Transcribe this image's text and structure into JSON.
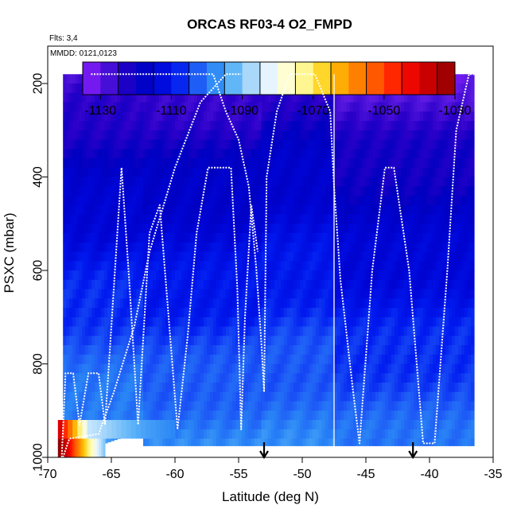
{
  "chart_data": {
    "type": "heatmap",
    "title": "ORCAS RF03-4 O2_FMPD",
    "subtitle_flights": "Flts: 3,4",
    "subtitle_dates": "MMDD: 0121,0123",
    "xlabel": "Latitude (deg N)",
    "ylabel": "PSXC (mbar)",
    "xlim": [
      -70,
      -35
    ],
    "ylim": [
      1000,
      120
    ],
    "x_ticks": [
      -70,
      -65,
      -60,
      -55,
      -50,
      -45,
      -40,
      -35
    ],
    "x_tick_labels": [
      "-70",
      "-65",
      "-60",
      "-55",
      "-50",
      "-45",
      "-40",
      "-35"
    ],
    "y_ticks": [
      200,
      400,
      600,
      800,
      1000
    ],
    "y_tick_labels": [
      "200",
      "400",
      "600",
      "800",
      "1000"
    ],
    "colorbar": {
      "range": [
        -1135,
        -1030
      ],
      "step": 5,
      "ticks": [
        -1130,
        -1110,
        -1090,
        -1070,
        -1050,
        -1030
      ],
      "tick_labels": [
        "-1130",
        "-1110",
        "-1090",
        "-1070",
        "-1050",
        "-1030"
      ],
      "colors": [
        "#8c1aff",
        "#5a19e0",
        "#2b00c9",
        "#0000c0",
        "#0005d6",
        "#0019ef",
        "#1c55f6",
        "#2a86f6",
        "#5ab2f8",
        "#a6d7fb",
        "#e6f4ff",
        "#ffffd0",
        "#fff58a",
        "#ffd11a",
        "#ffa500",
        "#ff7500",
        "#ff4d00",
        "#ff1400",
        "#e00000",
        "#b80000",
        "#8b0000"
      ]
    },
    "flight_divider_lat": -47.5,
    "arrow_markers_lat": [
      -53,
      -41.3
    ],
    "profile_zones": [
      {
        "lat_start": -68.8,
        "lat_end": -62.5,
        "p_top": 180,
        "p_bottom": 1000,
        "v_top": -1128,
        "v_bottom": -1095
      },
      {
        "lat_start": -62.5,
        "lat_end": -53.2,
        "p_top": 180,
        "p_bottom": 975,
        "v_top": -1128,
        "v_bottom": -1098
      },
      {
        "lat_start": -53.2,
        "lat_end": -47.5,
        "p_top": 180,
        "p_bottom": 975,
        "v_top": -1125,
        "v_bottom": -1098
      },
      {
        "lat_start": -47.5,
        "lat_end": -36.5,
        "p_top": 180,
        "p_bottom": 975,
        "v_top": -1130,
        "v_bottom": -1100
      }
    ],
    "anomalies": [
      {
        "lat_range": [
          -69.2,
          -65.5
        ],
        "p_range": [
          960,
          1000
        ],
        "values": [
          -1030,
          -1040,
          -1055,
          -1068,
          -1080,
          -1090
        ]
      },
      {
        "lat_range": [
          -69.2,
          -60.0
        ],
        "p_range": [
          920,
          960
        ],
        "values": [
          -1040,
          -1085,
          -1090,
          -1095,
          -1098
        ]
      }
    ],
    "flight_track": [
      [
        -66.6,
        180
      ],
      [
        -57.0,
        180
      ],
      [
        -56.0,
        260
      ],
      [
        -55.0,
        320
      ],
      [
        -54.2,
        420
      ],
      [
        -53.6,
        600
      ],
      [
        -53.2,
        760
      ],
      [
        -53.0,
        860
      ],
      [
        -52.8,
        400
      ],
      [
        -52.0,
        260
      ],
      [
        -51.0,
        180
      ],
      [
        -49.0,
        180
      ],
      [
        -47.8,
        260
      ],
      [
        -47.5,
        420
      ],
      [
        -47.0,
        620
      ],
      [
        -46.0,
        860
      ],
      [
        -45.5,
        970
      ],
      [
        -44.5,
        600
      ],
      [
        -43.5,
        380
      ],
      [
        -42.8,
        380
      ],
      [
        -41.6,
        600
      ],
      [
        -40.5,
        970
      ],
      [
        -39.6,
        970
      ],
      [
        -38.6,
        600
      ],
      [
        -37.9,
        300
      ],
      [
        -36.9,
        180
      ],
      [
        -35.0,
        180
      ]
    ],
    "flight_track_b": [
      [
        -68.9,
        1000
      ],
      [
        -68.6,
        820
      ],
      [
        -68.0,
        820
      ],
      [
        -67.5,
        930
      ],
      [
        -66.8,
        820
      ],
      [
        -66.0,
        820
      ],
      [
        -65.5,
        930
      ],
      [
        -65.0,
        720
      ],
      [
        -64.2,
        380
      ],
      [
        -63.6,
        620
      ],
      [
        -62.9,
        930
      ],
      [
        -62.0,
        520
      ],
      [
        -61.2,
        460
      ],
      [
        -60.5,
        700
      ],
      [
        -59.8,
        940
      ],
      [
        -59.0,
        740
      ],
      [
        -58.3,
        520
      ],
      [
        -57.4,
        380
      ],
      [
        -55.6,
        380
      ],
      [
        -55.1,
        640
      ],
      [
        -54.8,
        940
      ],
      [
        -54.5,
        700
      ],
      [
        -54.0,
        460
      ],
      [
        -53.5,
        560
      ]
    ],
    "flight_track_c": [
      [
        -68.8,
        1000
      ],
      [
        -68.3,
        960
      ],
      [
        -66.0,
        950
      ],
      [
        -64.8,
        860
      ],
      [
        -63.2,
        720
      ],
      [
        -62.0,
        560
      ],
      [
        -60.0,
        380
      ],
      [
        -58.0,
        240
      ],
      [
        -56.0,
        180
      ],
      [
        -54.8,
        180
      ]
    ]
  }
}
